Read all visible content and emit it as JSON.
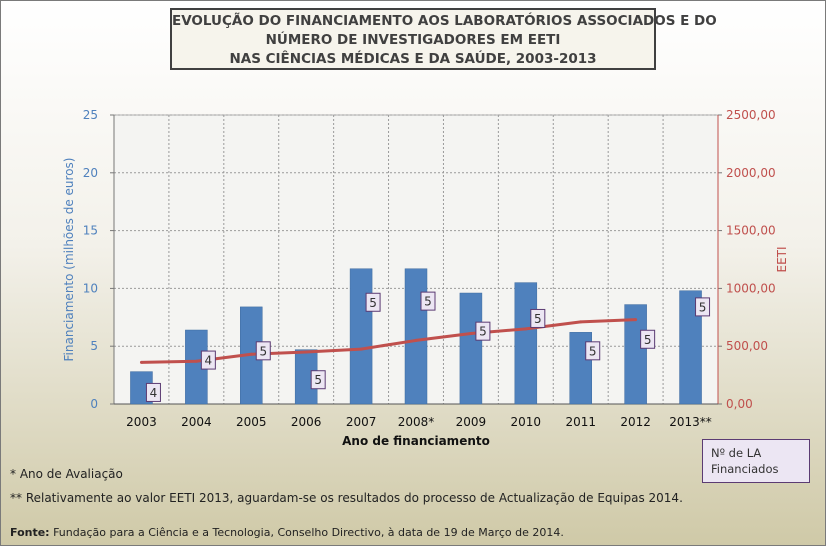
{
  "title_lines": [
    "EVOLUÇÃO DO FINANCIAMENTO AOS LABORATÓRIOS ASSOCIADOS E DO",
    "NÚMERO DE INVESTIGADORES EM EETI",
    "NAS CIÊNCIAS MÉDICAS E DA SAÚDE, 2003-2013"
  ],
  "notes": {
    "note1": "* Ano de Avaliação",
    "note2": "** Relativamente ao valor EETI 2013, aguardam-se os resultados do processo de Actualização de Equipas 2014.",
    "source_label": "Fonte:",
    "source_text": " Fundação para a Ciência e a Tecnologia, Conselho Directivo, à data de 19 de Março de 2014."
  },
  "legend_box": {
    "line1": "Nº de LA",
    "line2": "Financiados"
  },
  "colors": {
    "bar": "#4f81bd",
    "line": "#c0504d",
    "label_border": "#5b3b73",
    "label_bg": "#ece6f3"
  },
  "chart_data": {
    "type": "bar",
    "categories": [
      "2003",
      "2004",
      "2005",
      "2006",
      "2007",
      "2008*",
      "2009",
      "2010",
      "2011",
      "2012",
      "2013**"
    ],
    "xlabel": "Ano de financiamento",
    "ylabel": "Financiamento (milhões de euros)",
    "ylabel_right": "EETI",
    "ylim": [
      0,
      25
    ],
    "ylim_right": [
      0,
      2500
    ],
    "yticks": [
      "0",
      "5",
      "10",
      "15",
      "20",
      "25"
    ],
    "yticks_right": [
      "0,00",
      "500,00",
      "1000,00",
      "1500,00",
      "2000,00",
      "2500,00"
    ],
    "grid": true,
    "series": [
      {
        "type": "bar",
        "axis": "left",
        "values": [
          2.8,
          6.4,
          8.4,
          4.7,
          11.7,
          11.7,
          9.6,
          10.5,
          6.2,
          8.6,
          9.8
        ]
      },
      {
        "type": "line",
        "axis": "right",
        "values": [
          360,
          370,
          430,
          450,
          475,
          550,
          610,
          650,
          710,
          730,
          null
        ]
      }
    ],
    "bar_labels": [
      "4",
      "4",
      "5",
      "5",
      "5",
      "5",
      "5",
      "5",
      "5",
      "5",
      "5"
    ],
    "bar_label_values": [
      1.0,
      3.8,
      4.6,
      2.1,
      8.8,
      8.9,
      6.3,
      7.4,
      4.6,
      5.6,
      8.4
    ]
  }
}
